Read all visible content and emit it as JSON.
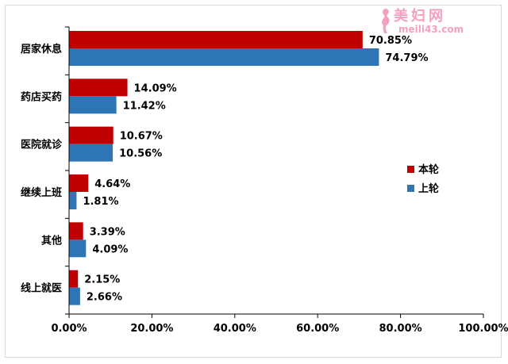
{
  "chart_data": {
    "type": "bar",
    "orientation": "horizontal",
    "categories": [
      "居家休息",
      "药店买药",
      "医院就诊",
      "继续上班",
      "其他",
      "线上就医"
    ],
    "series": [
      {
        "name": "本轮",
        "color": "#c00000",
        "values": [
          70.85,
          14.09,
          10.67,
          4.64,
          3.39,
          2.15
        ]
      },
      {
        "name": "上轮",
        "color": "#2e75b6",
        "values": [
          74.79,
          11.42,
          10.56,
          1.81,
          4.09,
          2.66
        ]
      }
    ],
    "value_labels": [
      [
        "70.85%",
        "14.09%",
        "10.67%",
        "4.64%",
        "3.39%",
        "2.15%"
      ],
      [
        "74.79%",
        "11.42%",
        "10.56%",
        "1.81%",
        "4.09%",
        "2.66%"
      ]
    ],
    "x_ticks": [
      0,
      20,
      40,
      60,
      80,
      100
    ],
    "x_tick_labels": [
      "0.00%",
      "20.00%",
      "40.00%",
      "60.00%",
      "80.00%",
      "100.00%"
    ],
    "xlim": [
      0,
      100
    ],
    "grid": false,
    "legend_position": "right"
  },
  "watermark": {
    "title": "美妇网",
    "url": "meili43.com"
  }
}
